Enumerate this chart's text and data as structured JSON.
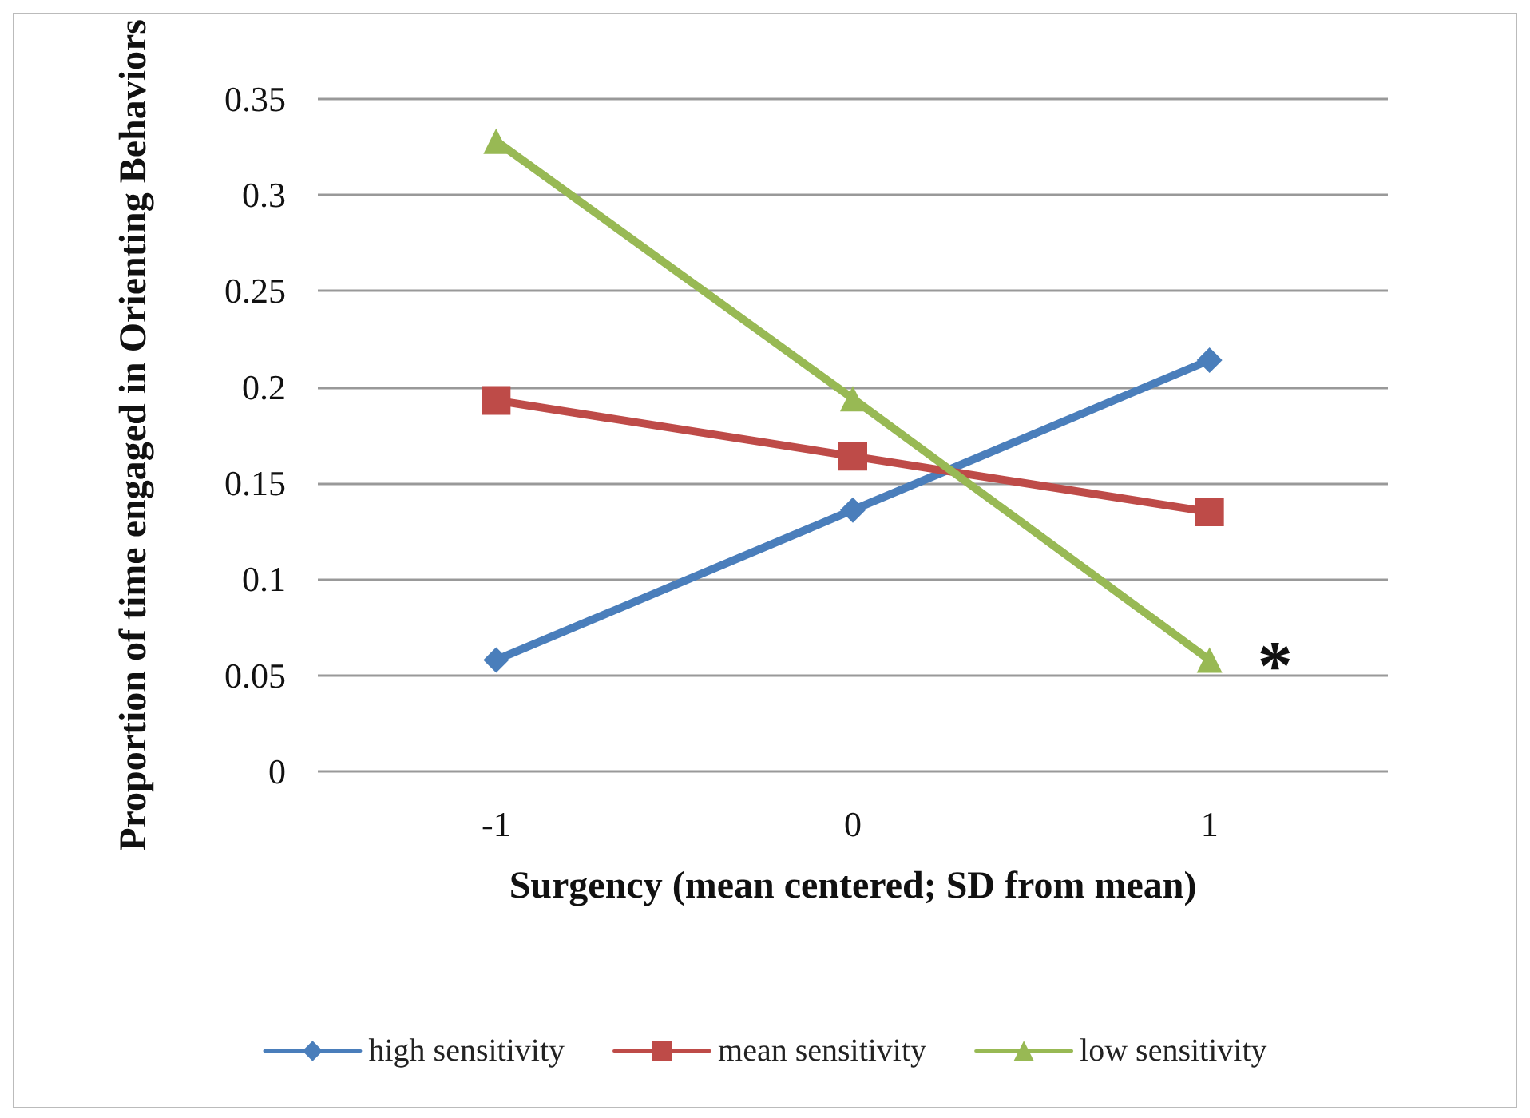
{
  "chart_data": {
    "type": "line",
    "xlabel": "Surgency (mean centered; SD from mean)",
    "ylabel": "Proportion of time engaged in Orienting Behaviors",
    "categories": [
      "-1",
      "0",
      "1"
    ],
    "series": [
      {
        "name": "high sensitivity",
        "color": "#4a7ebb",
        "marker": "diamond",
        "values": [
          0.058,
          0.136,
          0.214
        ]
      },
      {
        "name": "mean sensitivity",
        "color": "#be4b48",
        "marker": "square",
        "values": [
          0.193,
          0.164,
          0.135
        ]
      },
      {
        "name": "low sensitivity",
        "color": "#98b954",
        "marker": "triangle",
        "values": [
          0.328,
          0.194,
          0.058
        ]
      }
    ],
    "ylim": [
      0,
      0.35
    ],
    "yticks": [
      0,
      0.05,
      0.1,
      0.15,
      0.2,
      0.25,
      0.3,
      0.35
    ],
    "grid": "y",
    "legend": "bottom",
    "line_style": "solid",
    "annotations": [
      {
        "text": "*",
        "x": "1",
        "y": 0.055
      }
    ]
  }
}
